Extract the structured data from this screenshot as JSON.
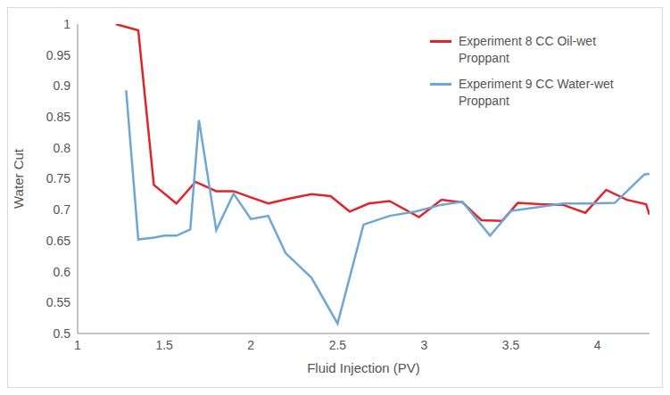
{
  "chart_data": {
    "type": "line",
    "x_label": "Fluid Injection (PV)",
    "y_label": "Water Cut",
    "xlim": [
      1,
      4.3
    ],
    "xticks": [
      1,
      1.5,
      2,
      2.5,
      3,
      3.5,
      4
    ],
    "ylim": [
      0.5,
      1
    ],
    "yticks": [
      0.5,
      0.55,
      0.6,
      0.65,
      0.7,
      0.75,
      0.8,
      0.85,
      0.9,
      0.95,
      1
    ],
    "grid": false,
    "legend": "upper right",
    "series": [
      {
        "name": "Experiment 8 CC Oil-wet Proppant",
        "color": "#e0242a",
        "x": [
          1.22,
          1.35,
          1.44,
          1.57,
          1.68,
          1.8,
          1.9,
          2.0,
          2.1,
          2.22,
          2.35,
          2.46,
          2.57,
          2.68,
          2.8,
          2.97,
          3.1,
          3.22,
          3.33,
          3.45,
          3.54,
          3.67,
          3.8,
          3.93,
          4.05,
          4.17,
          4.28,
          4.3
        ],
        "values": [
          1.0,
          0.99,
          0.74,
          0.71,
          0.745,
          0.73,
          0.73,
          0.72,
          0.71,
          0.718,
          0.725,
          0.722,
          0.697,
          0.71,
          0.714,
          0.688,
          0.716,
          0.712,
          0.683,
          0.682,
          0.711,
          0.709,
          0.708,
          0.695,
          0.732,
          0.716,
          0.709,
          0.692
        ]
      },
      {
        "name": "Experiment 9 CC Water-wet Proppant",
        "color": "#6ea6d6",
        "x": [
          1.28,
          1.35,
          1.44,
          1.5,
          1.57,
          1.65,
          1.7,
          1.8,
          1.9,
          2.0,
          2.1,
          2.2,
          2.35,
          2.5,
          2.65,
          2.8,
          2.95,
          3.1,
          3.22,
          3.38,
          3.5,
          3.65,
          3.8,
          3.95,
          4.1,
          4.27,
          4.3
        ],
        "values": [
          0.893,
          0.652,
          0.655,
          0.658,
          0.658,
          0.668,
          0.845,
          0.667,
          0.726,
          0.685,
          0.69,
          0.63,
          0.59,
          0.516,
          0.676,
          0.69,
          0.697,
          0.708,
          0.713,
          0.658,
          0.698,
          0.704,
          0.71,
          0.71,
          0.711,
          0.757,
          0.758
        ]
      }
    ]
  }
}
